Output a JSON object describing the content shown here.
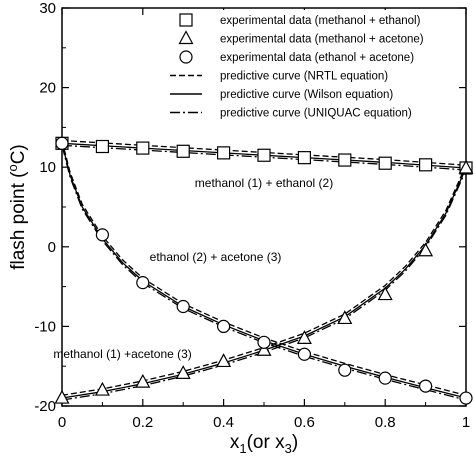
{
  "chart_data": {
    "type": "scatter",
    "xlabel": "x1(or x3)",
    "ylabel": "flash point (oC)",
    "xlim": [
      0,
      1
    ],
    "ylim": [
      -20,
      30
    ],
    "x_ticks": [
      "0",
      "0.2",
      "0.4",
      "0.6",
      "0.8",
      "1"
    ],
    "y_ticks": [
      "-20",
      "-10",
      "0",
      "10",
      "20",
      "30"
    ],
    "grid": false,
    "legend_position": "top-right",
    "legend": [
      {
        "marker": "square",
        "label": "experimental data (methanol + ethanol)"
      },
      {
        "marker": "triangle",
        "label": "experimental data (methanol + acetone)"
      },
      {
        "marker": "circle",
        "label": "experimental data (ethanol + acetone)"
      },
      {
        "line": "dashed",
        "label": "predictive curve (NRTL equation)"
      },
      {
        "line": "solid",
        "label": "predictive curve (Wilson equation)"
      },
      {
        "line": "dashdot",
        "label": "predictive curve (UNIQUAC equation)"
      }
    ],
    "annotations": [
      {
        "text": "methanol (1) + ethanol (2)",
        "x": 0.5,
        "y": 7.5
      },
      {
        "text": "ethanol (2) + acetone (3)",
        "x": 0.38,
        "y": -1.8
      },
      {
        "text": "methanol (1) +acetone (3)",
        "x": 0.15,
        "y": -14.0
      }
    ],
    "series": [
      {
        "name": "experimental data (methanol + ethanol)",
        "marker": "square",
        "x": [
          0,
          0.1,
          0.2,
          0.3,
          0.4,
          0.5,
          0.6,
          0.7,
          0.8,
          0.9,
          1.0
        ],
        "y": [
          13.0,
          12.6,
          12.4,
          12.0,
          11.8,
          11.5,
          11.2,
          10.9,
          10.5,
          10.3,
          9.9
        ]
      },
      {
        "name": "experimental data (methanol + acetone)",
        "marker": "triangle",
        "x": [
          0,
          0.1,
          0.2,
          0.3,
          0.4,
          0.5,
          0.6,
          0.7,
          0.8,
          0.9,
          1.0
        ],
        "y": [
          -19.0,
          -18.0,
          -17.0,
          -15.9,
          -14.4,
          -13.0,
          -11.5,
          -9.0,
          -6.0,
          -0.5,
          9.9
        ]
      },
      {
        "name": "experimental data (ethanol + acetone)",
        "marker": "circle",
        "x": [
          0,
          0.1,
          0.2,
          0.3,
          0.4,
          0.5,
          0.6,
          0.7,
          0.8,
          0.9,
          1.0
        ],
        "y": [
          13.0,
          1.5,
          -4.5,
          -7.5,
          -10.0,
          -12.0,
          -13.5,
          -15.5,
          -16.5,
          -17.5,
          -19.0
        ]
      }
    ],
    "curves": [
      {
        "system": "methanol + ethanol",
        "x": [
          0,
          0.2,
          0.4,
          0.6,
          0.8,
          1.0
        ],
        "y": [
          13.0,
          12.4,
          11.8,
          11.2,
          10.6,
          9.9
        ]
      },
      {
        "system": "methanol + acetone",
        "x": [
          0,
          0.1,
          0.2,
          0.3,
          0.4,
          0.5,
          0.6,
          0.7,
          0.8,
          0.85,
          0.9,
          0.95,
          1.0
        ],
        "y": [
          -19.0,
          -18.2,
          -17.2,
          -16.0,
          -14.6,
          -13.0,
          -11.2,
          -8.8,
          -5.2,
          -2.8,
          0.2,
          4.2,
          9.9
        ]
      },
      {
        "system": "ethanol + acetone",
        "x": [
          0,
          0.02,
          0.05,
          0.1,
          0.15,
          0.2,
          0.3,
          0.4,
          0.5,
          0.6,
          0.7,
          0.8,
          0.9,
          1.0
        ],
        "y": [
          13.0,
          9.0,
          5.0,
          1.0,
          -2.0,
          -4.3,
          -7.5,
          -9.8,
          -11.8,
          -13.5,
          -15.0,
          -16.4,
          -17.7,
          -19.0
        ]
      }
    ]
  }
}
